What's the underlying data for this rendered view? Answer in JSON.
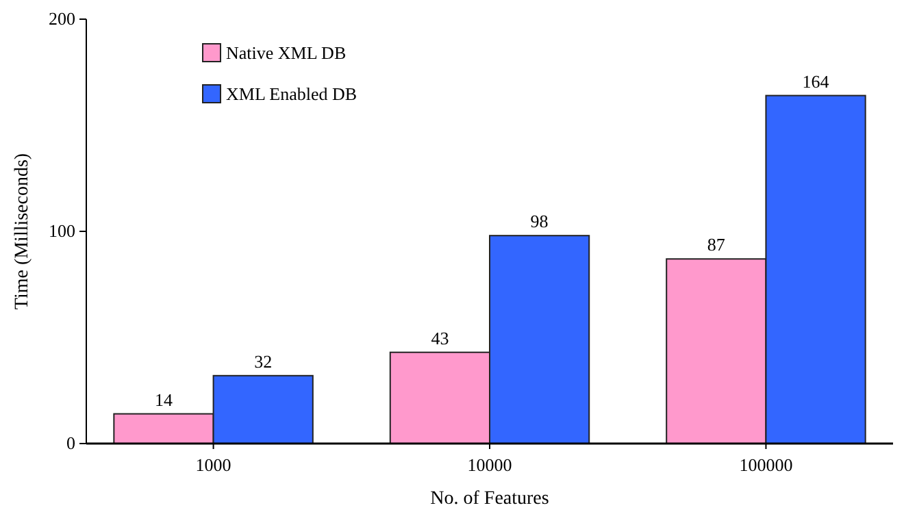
{
  "chart_data": {
    "type": "bar",
    "xlabel": "No. of Features",
    "ylabel": "Time (Milliseconds)",
    "categories": [
      "1000",
      "10000",
      "100000"
    ],
    "series": [
      {
        "name": "Native XML DB",
        "color": "#ff99cc",
        "values": [
          14,
          43,
          87
        ]
      },
      {
        "name": "XML Enabled DB",
        "color": "#3366ff",
        "values": [
          32,
          98,
          164
        ]
      }
    ],
    "ylim": [
      0,
      200
    ],
    "yticks": [
      0,
      100,
      200
    ],
    "data_labels": true,
    "legend": "top left",
    "grid": false
  }
}
